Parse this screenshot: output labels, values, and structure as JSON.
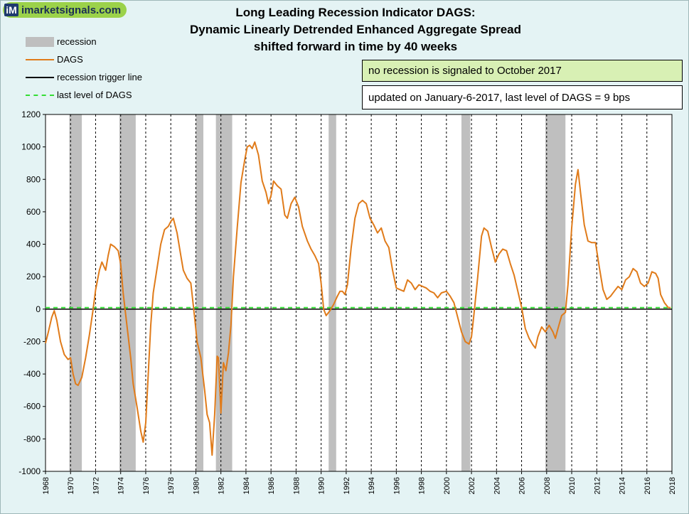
{
  "logo": {
    "mark": "iM",
    "text": "imarketsignals.com",
    "icon": "im-logo-icon"
  },
  "title": {
    "line1": "Long Leading Recession Indicator DAGS:",
    "line2": "Dynamic Linearly Detrended Enhanced Aggregate Spread",
    "line3": "shifted forward in time by 40 weeks"
  },
  "legend": {
    "recession": "recession",
    "dags": "DAGS",
    "trigger": "recession trigger line",
    "last_level": "last level of DAGS"
  },
  "notes": {
    "signal": "no recession is signaled to October 2017",
    "updated": "updated on January-6-2017,  last level of DAGS = 9 bps"
  },
  "colors": {
    "dags": "#e07b1a",
    "recession": "#bfbfbf",
    "trigger": "#000000",
    "last_level": "#33dd33",
    "plot_bg": "#ffffff"
  },
  "chart_data": {
    "type": "line",
    "title": "Long Leading Recession Indicator DAGS: Dynamic Linearly Detrended Enhanced Aggregate Spread shifted forward in time by 40 weeks",
    "xlabel": "",
    "ylabel": "",
    "xlim": [
      1968,
      2018
    ],
    "ylim": [
      -1000,
      1200
    ],
    "x_ticks": [
      "1968",
      "1970",
      "1972",
      "1974",
      "1976",
      "1978",
      "1980",
      "1982",
      "1984",
      "1986",
      "1988",
      "1990",
      "1992",
      "1994",
      "1996",
      "1998",
      "2000",
      "2002",
      "2004",
      "2006",
      "2008",
      "2010",
      "2012",
      "2014",
      "2016",
      "2018"
    ],
    "y_ticks": [
      "1200",
      "1000",
      "800",
      "600",
      "400",
      "200",
      "0",
      "-200",
      "-400",
      "-600",
      "-800",
      "-1000"
    ],
    "grid": "dashed-vertical",
    "legend_position": "top-left",
    "recessions": [
      [
        1969.9,
        1970.9
      ],
      [
        1973.9,
        1975.2
      ],
      [
        1980.0,
        1980.6
      ],
      [
        1981.6,
        1982.9
      ],
      [
        1990.6,
        1991.2
      ],
      [
        2001.2,
        2001.9
      ],
      [
        2007.9,
        2009.5
      ]
    ],
    "trigger_level": 0,
    "last_level": 9,
    "series": [
      {
        "name": "DAGS",
        "points": [
          [
            1968.0,
            -210
          ],
          [
            1968.2,
            -150
          ],
          [
            1968.5,
            -50
          ],
          [
            1968.7,
            -10
          ],
          [
            1968.9,
            -70
          ],
          [
            1969.2,
            -200
          ],
          [
            1969.5,
            -280
          ],
          [
            1969.8,
            -310
          ],
          [
            1970.0,
            -300
          ],
          [
            1970.2,
            -400
          ],
          [
            1970.4,
            -460
          ],
          [
            1970.6,
            -470
          ],
          [
            1970.9,
            -420
          ],
          [
            1971.2,
            -300
          ],
          [
            1971.5,
            -160
          ],
          [
            1971.8,
            0
          ],
          [
            1972.0,
            120
          ],
          [
            1972.3,
            240
          ],
          [
            1972.5,
            290
          ],
          [
            1972.8,
            240
          ],
          [
            1973.0,
            330
          ],
          [
            1973.2,
            400
          ],
          [
            1973.5,
            385
          ],
          [
            1973.8,
            360
          ],
          [
            1974.0,
            280
          ],
          [
            1974.2,
            100
          ],
          [
            1974.5,
            -100
          ],
          [
            1974.8,
            -300
          ],
          [
            1975.0,
            -460
          ],
          [
            1975.3,
            -600
          ],
          [
            1975.6,
            -750
          ],
          [
            1975.8,
            -820
          ],
          [
            1976.0,
            -700
          ],
          [
            1976.2,
            -400
          ],
          [
            1976.4,
            -100
          ],
          [
            1976.6,
            100
          ],
          [
            1976.9,
            250
          ],
          [
            1977.2,
            400
          ],
          [
            1977.5,
            490
          ],
          [
            1977.8,
            510
          ],
          [
            1978.0,
            540
          ],
          [
            1978.2,
            560
          ],
          [
            1978.5,
            470
          ],
          [
            1978.8,
            330
          ],
          [
            1979.0,
            240
          ],
          [
            1979.3,
            190
          ],
          [
            1979.6,
            160
          ],
          [
            1979.9,
            -50
          ],
          [
            1980.1,
            -200
          ],
          [
            1980.4,
            -300
          ],
          [
            1980.7,
            -500
          ],
          [
            1980.9,
            -650
          ],
          [
            1981.1,
            -700
          ],
          [
            1981.3,
            -900
          ],
          [
            1981.5,
            -650
          ],
          [
            1981.7,
            -290
          ],
          [
            1981.8,
            -300
          ],
          [
            1982.0,
            -640
          ],
          [
            1982.2,
            -330
          ],
          [
            1982.4,
            -380
          ],
          [
            1982.6,
            -270
          ],
          [
            1982.8,
            -100
          ],
          [
            1983.0,
            200
          ],
          [
            1983.3,
            500
          ],
          [
            1983.6,
            780
          ],
          [
            1983.9,
            920
          ],
          [
            1984.1,
            1000
          ],
          [
            1984.3,
            1010
          ],
          [
            1984.5,
            990
          ],
          [
            1984.7,
            1030
          ],
          [
            1985.0,
            950
          ],
          [
            1985.3,
            790
          ],
          [
            1985.6,
            720
          ],
          [
            1985.8,
            650
          ],
          [
            1986.0,
            700
          ],
          [
            1986.2,
            790
          ],
          [
            1986.5,
            760
          ],
          [
            1986.8,
            740
          ],
          [
            1987.1,
            580
          ],
          [
            1987.3,
            560
          ],
          [
            1987.6,
            650
          ],
          [
            1987.9,
            690
          ],
          [
            1988.2,
            630
          ],
          [
            1988.5,
            510
          ],
          [
            1988.9,
            420
          ],
          [
            1989.2,
            370
          ],
          [
            1989.5,
            330
          ],
          [
            1989.8,
            280
          ],
          [
            1990.0,
            160
          ],
          [
            1990.2,
            0
          ],
          [
            1990.4,
            -40
          ],
          [
            1990.7,
            -10
          ],
          [
            1991.0,
            30
          ],
          [
            1991.3,
            80
          ],
          [
            1991.5,
            110
          ],
          [
            1991.7,
            110
          ],
          [
            1991.9,
            90
          ],
          [
            1992.1,
            150
          ],
          [
            1992.4,
            380
          ],
          [
            1992.7,
            560
          ],
          [
            1993.0,
            650
          ],
          [
            1993.3,
            670
          ],
          [
            1993.6,
            650
          ],
          [
            1993.9,
            560
          ],
          [
            1994.2,
            520
          ],
          [
            1994.5,
            470
          ],
          [
            1994.8,
            500
          ],
          [
            1995.1,
            420
          ],
          [
            1995.4,
            380
          ],
          [
            1995.7,
            240
          ],
          [
            1996.0,
            130
          ],
          [
            1996.3,
            120
          ],
          [
            1996.6,
            110
          ],
          [
            1996.9,
            180
          ],
          [
            1997.2,
            160
          ],
          [
            1997.5,
            120
          ],
          [
            1997.8,
            150
          ],
          [
            1998.1,
            140
          ],
          [
            1998.4,
            130
          ],
          [
            1998.7,
            110
          ],
          [
            1999.0,
            100
          ],
          [
            1999.3,
            70
          ],
          [
            1999.6,
            100
          ],
          [
            2000.0,
            110
          ],
          [
            2000.3,
            80
          ],
          [
            2000.6,
            40
          ],
          [
            2000.9,
            -50
          ],
          [
            2001.2,
            -140
          ],
          [
            2001.5,
            -200
          ],
          [
            2001.8,
            -215
          ],
          [
            2002.0,
            -170
          ],
          [
            2002.2,
            -30
          ],
          [
            2002.5,
            200
          ],
          [
            2002.8,
            450
          ],
          [
            2003.0,
            500
          ],
          [
            2003.3,
            480
          ],
          [
            2003.6,
            380
          ],
          [
            2003.9,
            290
          ],
          [
            2004.2,
            340
          ],
          [
            2004.5,
            370
          ],
          [
            2004.8,
            360
          ],
          [
            2005.1,
            280
          ],
          [
            2005.4,
            210
          ],
          [
            2005.7,
            110
          ],
          [
            2006.0,
            10
          ],
          [
            2006.3,
            -120
          ],
          [
            2006.6,
            -180
          ],
          [
            2006.9,
            -220
          ],
          [
            2007.1,
            -240
          ],
          [
            2007.3,
            -170
          ],
          [
            2007.6,
            -110
          ],
          [
            2007.9,
            -140
          ],
          [
            2008.2,
            -100
          ],
          [
            2008.5,
            -140
          ],
          [
            2008.7,
            -180
          ],
          [
            2008.9,
            -120
          ],
          [
            2009.2,
            -40
          ],
          [
            2009.5,
            -20
          ],
          [
            2009.7,
            150
          ],
          [
            2010.0,
            500
          ],
          [
            2010.3,
            770
          ],
          [
            2010.5,
            860
          ],
          [
            2010.7,
            720
          ],
          [
            2011.0,
            520
          ],
          [
            2011.3,
            420
          ],
          [
            2011.6,
            410
          ],
          [
            2011.9,
            410
          ],
          [
            2012.2,
            260
          ],
          [
            2012.5,
            120
          ],
          [
            2012.8,
            60
          ],
          [
            2013.1,
            80
          ],
          [
            2013.4,
            110
          ],
          [
            2013.7,
            140
          ],
          [
            2014.0,
            120
          ],
          [
            2014.3,
            180
          ],
          [
            2014.6,
            200
          ],
          [
            2014.9,
            250
          ],
          [
            2015.2,
            230
          ],
          [
            2015.5,
            160
          ],
          [
            2015.8,
            140
          ],
          [
            2016.1,
            160
          ],
          [
            2016.4,
            230
          ],
          [
            2016.7,
            220
          ],
          [
            2016.9,
            190
          ],
          [
            2017.1,
            90
          ],
          [
            2017.4,
            40
          ],
          [
            2017.7,
            10
          ],
          [
            2017.9,
            9
          ]
        ]
      }
    ]
  }
}
